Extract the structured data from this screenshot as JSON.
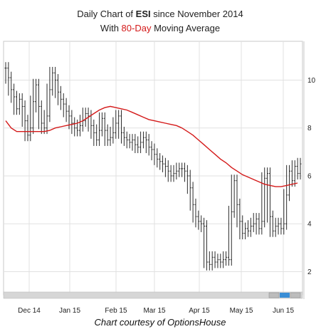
{
  "header": {
    "title_prefix": "Daily Chart of ",
    "ticker": "ESI",
    "title_suffix": " since November 2014",
    "subtitle_prefix": "With ",
    "subtitle_highlight": "80-Day",
    "subtitle_suffix": " Moving Average"
  },
  "caption": "Chart courtesy of OptionsHouse",
  "colors": {
    "price_bars": "#2b2b2b",
    "moving_average": "#d41a1a",
    "highlight_text": "#d41a1a",
    "grid": "#e1e1e1",
    "scrollbar_thumb": "#3a8ed6"
  },
  "chart_data": {
    "type": "line",
    "title": "Daily Chart of ESI since November 2014",
    "subtitle": "With 80-Day Moving Average",
    "x_tick_labels": [
      "Dec 14",
      "Jan 15",
      "Feb 15",
      "Mar 15",
      "Apr 15",
      "May 15",
      "Jun 15"
    ],
    "y_tick_labels": [
      "2",
      "4",
      "6",
      "8",
      "10"
    ],
    "ylim": [
      1.3,
      11.5
    ],
    "y_axis_side": "right",
    "grid": true,
    "series": [
      {
        "name": "ESI",
        "style": "ohlc-bars",
        "x": [
          0,
          2,
          4,
          6,
          8,
          10,
          12,
          14,
          16,
          18,
          20,
          22,
          24,
          26,
          28,
          30,
          32,
          34,
          36,
          38,
          40,
          42,
          44,
          46,
          48,
          50,
          52,
          54,
          56,
          58,
          60,
          62,
          64,
          66,
          68,
          70,
          72,
          74,
          76,
          78,
          80,
          82,
          84,
          86,
          88,
          90,
          92,
          94,
          96,
          98,
          100,
          102,
          104,
          106,
          108,
          110,
          112,
          114,
          116,
          118,
          120,
          122,
          124,
          126,
          128,
          130,
          132,
          134,
          136,
          138,
          140,
          142,
          144,
          146,
          148,
          150,
          152,
          154,
          156,
          158,
          160,
          162,
          164,
          166,
          168,
          170,
          172,
          174,
          176,
          178,
          180,
          182,
          184,
          186,
          188,
          190,
          192,
          194,
          196,
          198,
          200,
          202,
          204,
          206,
          208,
          210,
          212,
          214
        ],
        "values": [
          10.5,
          10.1,
          9.6,
          9.3,
          8.8,
          9.2,
          8.9,
          8.3,
          7.7,
          8.0,
          9.1,
          9.8,
          8.9,
          8.2,
          8.0,
          8.5,
          9.6,
          10.3,
          10.0,
          9.5,
          9.2,
          9.0,
          8.7,
          8.5,
          8.2,
          8.0,
          7.9,
          8.1,
          8.3,
          8.6,
          8.5,
          8.1,
          7.8,
          7.5,
          7.9,
          8.4,
          7.9,
          7.5,
          7.6,
          7.8,
          8.2,
          8.5,
          7.8,
          7.6,
          7.5,
          7.4,
          7.5,
          7.3,
          7.2,
          7.4,
          7.6,
          7.5,
          7.2,
          7.1,
          6.9,
          6.7,
          6.6,
          6.5,
          6.4,
          6.2,
          6.0,
          6.1,
          6.2,
          6.3,
          6.3,
          6.2,
          6.0,
          5.5,
          4.8,
          4.3,
          4.1,
          4.0,
          3.9,
          2.4,
          2.3,
          2.6,
          2.4,
          2.5,
          2.4,
          2.5,
          2.6,
          2.5,
          4.5,
          5.8,
          4.8,
          4.1,
          3.6,
          3.8,
          3.7,
          3.9,
          4.0,
          4.2,
          3.8,
          4.1,
          5.9,
          6.1,
          4.3,
          3.7,
          3.9,
          4.0,
          3.8,
          4.0,
          5.2,
          6.2,
          5.8,
          6.4,
          6.1,
          6.5
        ]
      },
      {
        "name": "80-Day",
        "style": "line",
        "x": [
          0,
          4,
          8,
          12,
          16,
          20,
          24,
          28,
          32,
          36,
          40,
          44,
          48,
          52,
          56,
          60,
          64,
          68,
          72,
          76,
          80,
          84,
          88,
          92,
          96,
          100,
          104,
          108,
          112,
          116,
          120,
          124,
          128,
          132,
          136,
          140,
          144,
          148,
          152,
          156,
          160,
          164,
          168,
          172,
          176,
          180,
          184,
          188,
          192,
          196,
          200,
          204,
          208,
          212
        ],
        "values": [
          8.3,
          8.0,
          7.85,
          7.85,
          7.85,
          7.85,
          7.85,
          7.85,
          7.9,
          8.0,
          8.05,
          8.1,
          8.15,
          8.2,
          8.3,
          8.45,
          8.6,
          8.75,
          8.85,
          8.9,
          8.85,
          8.8,
          8.75,
          8.65,
          8.55,
          8.45,
          8.35,
          8.3,
          8.25,
          8.2,
          8.15,
          8.1,
          8.0,
          7.85,
          7.7,
          7.5,
          7.3,
          7.1,
          6.9,
          6.7,
          6.55,
          6.35,
          6.2,
          6.05,
          5.95,
          5.85,
          5.75,
          5.65,
          5.6,
          5.55,
          5.55,
          5.6,
          5.65,
          5.7
        ]
      }
    ]
  }
}
